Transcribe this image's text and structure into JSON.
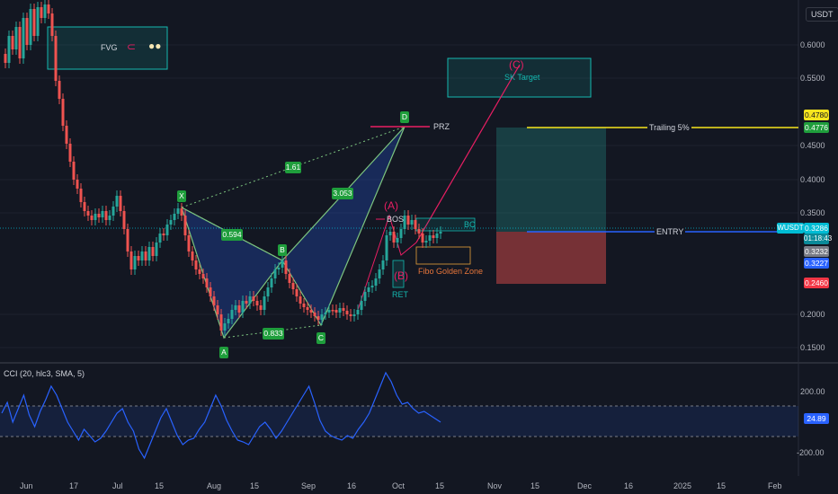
{
  "symbol_tag": "USDT",
  "indicator": {
    "title": "CCI (20, hlc3, SMA, 5)",
    "value": "24.89",
    "levels": [
      "200.00",
      "-200.00"
    ]
  },
  "fvg": {
    "label": "FVG"
  },
  "price_axis": [
    "0.6000",
    "0.5500",
    "0.4500",
    "0.4000",
    "0.3500",
    "0.2000",
    "0.1500"
  ],
  "price_tags": {
    "trailing_high": "0.4780",
    "trailing": "0.4776",
    "current": "0.3286",
    "countdown": "01:18:43",
    "entry_a": "0.3232",
    "entry_b": "0.3227",
    "stop": "0.2460",
    "ticker": "WUSDT",
    "ticker_color": "#00bcd4",
    "stop_color": "#f23645"
  },
  "annotations": {
    "sk_target": "SK Target",
    "c_wave": "(C)",
    "a_wave": "(A)",
    "b_wave": "(B)",
    "prz": "PRZ",
    "bos": "BOS",
    "bc": "BC",
    "ret": "RET",
    "fibo": "Fibo Golden Zone",
    "trailing": "Trailing 5%",
    "entry": "ENTRY"
  },
  "harmonic": {
    "points": [
      "X",
      "A",
      "B",
      "C",
      "D"
    ],
    "ratios": {
      "xb": "0.594",
      "ac": "0.833",
      "bd": "3.053",
      "xd": "1.61"
    }
  },
  "time_axis": [
    "Jun",
    "17",
    "Jul",
    "15",
    "Aug",
    "15",
    "Sep",
    "16",
    "Oct",
    "15",
    "Nov",
    "15",
    "Dec",
    "16",
    "2025",
    "15",
    "Feb"
  ],
  "colors": {
    "background": "#131722",
    "up": "#26a69a",
    "down": "#ef5350",
    "harmonic": "#2a3f7a",
    "target_box": "#14b8b0",
    "trailing_line": "#f7e51d",
    "entry_line": "#2962ff"
  }
}
